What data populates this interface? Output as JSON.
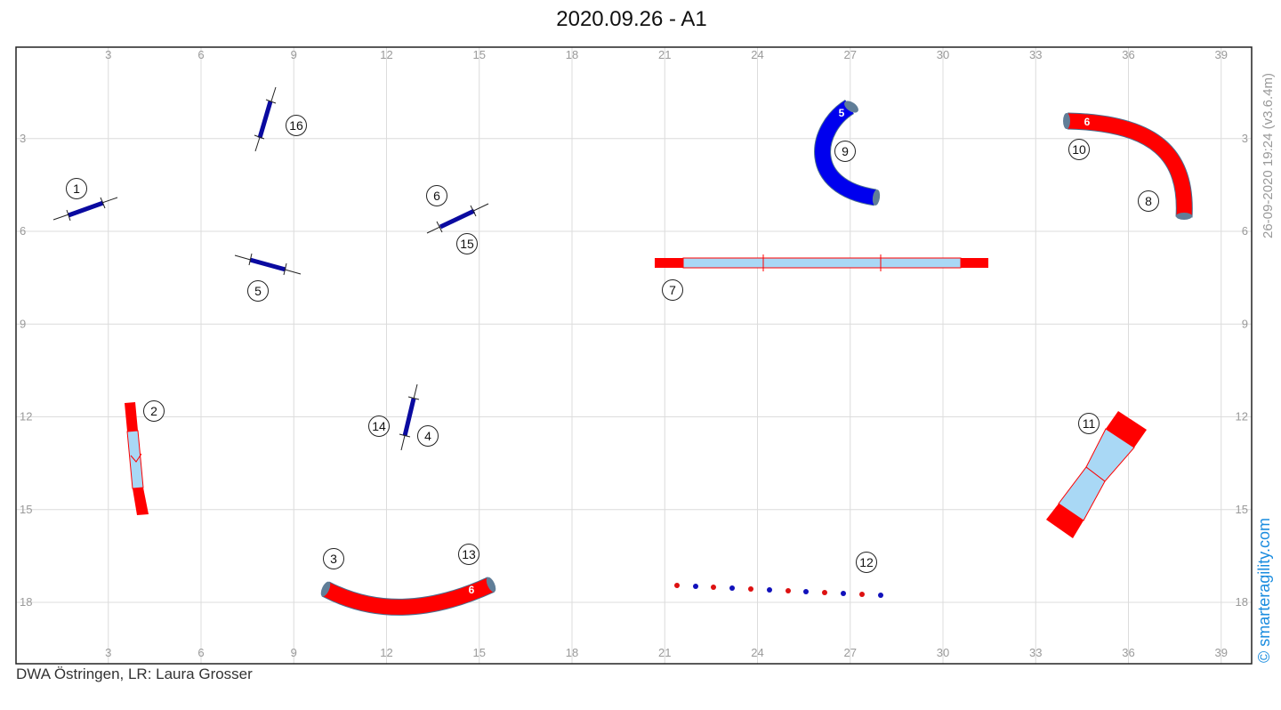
{
  "title": "2020.09.26 - A1",
  "footer": "DWA Östringen, LR: Laura Grosser",
  "stamp": "26-09-2020 19:24  (v3.6.4m)",
  "brand": "© smarteragility.com",
  "axes": {
    "x_ticks": [
      "3",
      "6",
      "9",
      "12",
      "15",
      "18",
      "21",
      "24",
      "27",
      "30",
      "33",
      "36",
      "39"
    ],
    "y_ticks": [
      "3",
      "6",
      "9",
      "12",
      "15",
      "18"
    ]
  },
  "colors": {
    "red": "#ff0000",
    "blue": "#0000ee",
    "navy": "#0a0aa0",
    "contact": "#a9d8f5",
    "grid": "#dddddd",
    "brand": "#1a8cdf"
  },
  "numbers": {
    "n1": "1",
    "n2": "2",
    "n3": "3",
    "n4": "4",
    "n5": "5",
    "n6": "6",
    "n7": "7",
    "n8": "8",
    "n9": "9",
    "n10": "10",
    "n11": "11",
    "n12": "12",
    "n13": "13",
    "n14": "14",
    "n15": "15",
    "n16": "16"
  },
  "tunnel_labels": {
    "blue_tunnel": "5",
    "red_tunnel_top": "6",
    "red_tunnel_bottom": "6"
  },
  "obstacles": [
    {
      "id": 1,
      "type": "jump"
    },
    {
      "id": 2,
      "type": "a-frame"
    },
    {
      "id": 3,
      "type": "tunnel"
    },
    {
      "id": 4,
      "type": "jump"
    },
    {
      "id": 5,
      "type": "jump"
    },
    {
      "id": 6,
      "type": "jump"
    },
    {
      "id": 7,
      "type": "dog-walk"
    },
    {
      "id": 8,
      "type": "tunnel"
    },
    {
      "id": 9,
      "type": "tunnel"
    },
    {
      "id": 10,
      "type": "tunnel"
    },
    {
      "id": 11,
      "type": "a-frame"
    },
    {
      "id": 12,
      "type": "weave-poles"
    },
    {
      "id": 13,
      "type": "tunnel"
    },
    {
      "id": 14,
      "type": "jump"
    },
    {
      "id": 15,
      "type": "jump"
    },
    {
      "id": 16,
      "type": "jump"
    }
  ]
}
